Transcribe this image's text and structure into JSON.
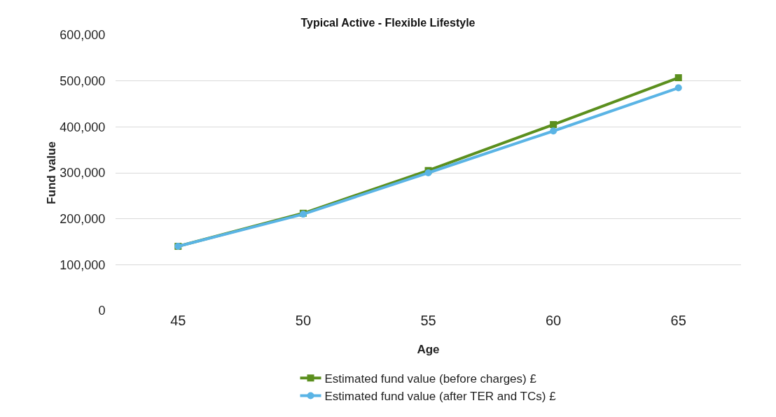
{
  "chart_data": {
    "type": "line",
    "title": "Typical Active - Flexible Lifestyle",
    "xlabel": "Age",
    "ylabel": "Fund value",
    "categories": [
      "45",
      "50",
      "55",
      "60",
      "65"
    ],
    "series": [
      {
        "name": "Estimated fund value (before charges) £",
        "color": "#5b8f1e",
        "marker": "square",
        "values": [
          140000,
          212000,
          305000,
          405000,
          507000
        ]
      },
      {
        "name": "Estimated fund value (after TER and TCs) £",
        "color": "#5ab4e5",
        "marker": "circle",
        "values": [
          140000,
          210000,
          300000,
          391000,
          485000
        ]
      }
    ],
    "ylim": [
      0,
      600000
    ],
    "yticks": [
      {
        "value": 0,
        "label": "0"
      },
      {
        "value": 100000,
        "label": "100,000"
      },
      {
        "value": 200000,
        "label": "200,000"
      },
      {
        "value": 300000,
        "label": "300,000"
      },
      {
        "value": 400000,
        "label": "400,000"
      },
      {
        "value": 500000,
        "label": "500,000"
      },
      {
        "value": 600000,
        "label": "600,000"
      }
    ],
    "grid": "y",
    "legend": "bottom",
    "line_style": "solid"
  }
}
